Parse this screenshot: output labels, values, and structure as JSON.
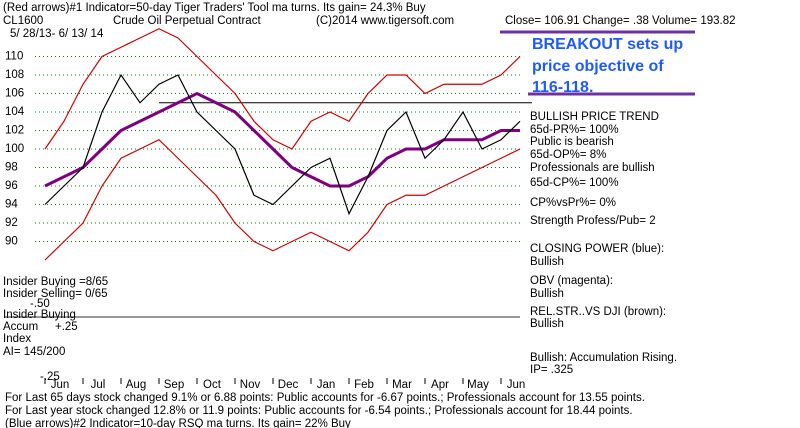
{
  "chart_data": {
    "type": "line",
    "title": "(Red arrows)#1 Indicator=50-day Tiger Traders' Tool ma turns. Its gain= 24.3% Buy",
    "symbol": "CL1600",
    "contract": "Crude Oil Perpetual Contract",
    "copyright": "(C)2014 www.tigersoft.com",
    "quote": "Close=  106.91   Change= .38 Volume= 193.82",
    "date_range": "5/ 28/13- 6/ 13/ 14",
    "callout": [
      "BREAKOUT sets up",
      "price objective of",
      "116-118."
    ],
    "categories": [
      "Jun",
      null,
      "Jul",
      null,
      "Aug",
      null,
      "Sep",
      null,
      "Oct",
      null,
      "Nov",
      null,
      "Dec",
      null,
      "Jan",
      null,
      "Feb",
      null,
      "Mar",
      null,
      "Apr",
      null,
      "May",
      null,
      "Jun",
      null
    ],
    "series": [
      {
        "color": "#d00000",
        "values": [
          100,
          103,
          107,
          110,
          111,
          112,
          113,
          112,
          110,
          108,
          106,
          103,
          101,
          100,
          103,
          104,
          103,
          106,
          108,
          108,
          106,
          107,
          107,
          107,
          108,
          110
        ]
      },
      {
        "color": "#d00000",
        "values": [
          88,
          90,
          92,
          96,
          99,
          100,
          101,
          99,
          97,
          95,
          92,
          90,
          89,
          90,
          91,
          90,
          89,
          91,
          94,
          95,
          95,
          96,
          97,
          98,
          99,
          100
        ]
      },
      {
        "color": "#800080",
        "values": [
          96,
          97,
          98,
          100,
          102,
          103,
          104,
          105,
          106,
          105,
          104,
          102,
          100,
          98,
          97,
          96,
          96,
          97,
          99,
          100,
          100,
          101,
          101,
          101,
          102,
          102
        ]
      },
      {
        "color": "#000000",
        "values": [
          94,
          96,
          98,
          104,
          108,
          105,
          107,
          108,
          104,
          102,
          100,
          95,
          94,
          96,
          98,
          99,
          93,
          97,
          102,
          104,
          99,
          101,
          104,
          100,
          101,
          103
        ]
      }
    ],
    "resistance": 105,
    "ylim": [
      88,
      112
    ],
    "yticks": [
      90,
      92,
      94,
      96,
      98,
      100,
      102,
      104,
      106,
      108,
      110
    ],
    "grid": true,
    "right_notes": [
      "BULLISH PRICE TREND",
      "65d-PR%= 100%",
      "Public is bearish",
      "65d-OP%= 8%",
      "Professionals are bullish",
      "65d-CP%= 100%",
      "CP%vsPr%=  0%",
      "Strength Profess/Pub= 2",
      "CLOSING POWER (blue):",
      "Bullish",
      "OBV (magenta):",
      "Bullish",
      "REL.STR..VS DJI (brown):",
      "Bullish",
      "Bullish: Accumulation Rising.",
      "IP=  .325"
    ],
    "left_notes": [
      "Insider Buying =8/65",
      "Insider Selling= 0/65",
      "-.50",
      "Insider Buying",
      "Accum",
      "+.25",
      "Index",
      "AI= 145/200",
      "-.25"
    ],
    "footer": [
      "For Last 65 days stock changed  9.1% or  6.88 points:  Public accounts for -6.67 points.;  Professionals account for  13.55 points.",
      "For Last year stock changed  12.8% or  11.9 points:  Public accounts for -6.54 points.;  Professionals account for  18.44 points.",
      "(Blue arrows)#2 Indicator=10-day RSQ ma turns. Its gain= 22% Buy"
    ]
  }
}
